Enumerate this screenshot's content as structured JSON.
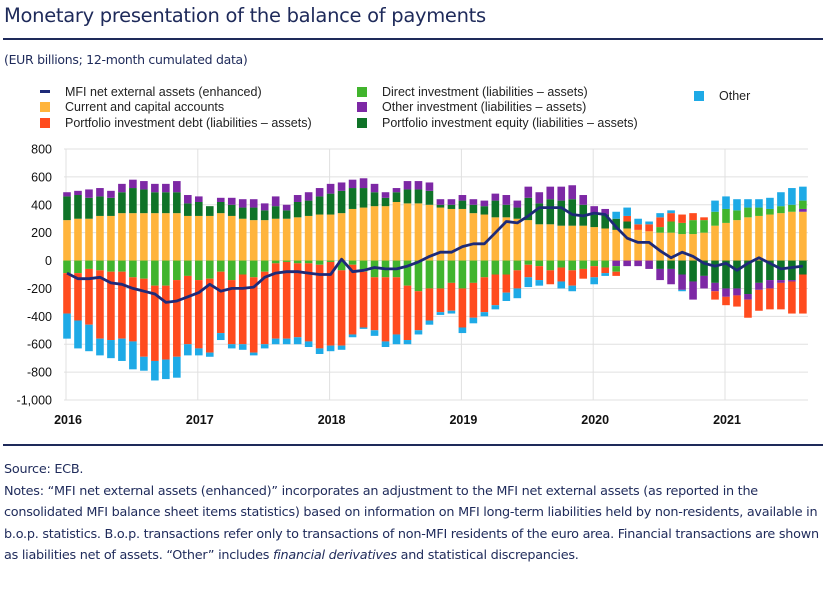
{
  "header": {
    "title": "Monetary presentation of the balance of payments",
    "subtitle": "(EUR billions; 12-month cumulated data)"
  },
  "legend": {
    "col1": [
      {
        "label": "MFI net external assets (enhanced)",
        "key": "mfi"
      },
      {
        "label": "Current and capital accounts",
        "key": "cca"
      },
      {
        "label": "Portfolio investment debt (liabilities – assets)",
        "key": "pid"
      }
    ],
    "col2": [
      {
        "label": "Direct investment (liabilities – assets)",
        "key": "di"
      },
      {
        "label": "Other investment (liabilities – assets)",
        "key": "oi"
      },
      {
        "label": "Portfolio investment equity (liabilities – assets)",
        "key": "pie"
      }
    ],
    "col3": [
      {
        "label": "Other",
        "key": "other"
      }
    ]
  },
  "colors": {
    "mfi": "#1e2a78",
    "cca": "#ffb43c",
    "pid": "#ff4b1e",
    "di": "#41b42d",
    "oi": "#7d28a5",
    "pie": "#0f7328",
    "other": "#1eaae6",
    "title": "#1e2a5a",
    "grid": "#e0e0e0"
  },
  "footer": {
    "source": "Source: ECB.",
    "notes_part1": "Notes: “MFI net external assets (enhanced)” incorporates an adjustment to the MFI net external assets (as reported in the consolidated MFI balance sheet items statistics) based on information on MFI long-term liabilities held by non-residents, available in b.o.p. statistics. B.o.p. transactions refer only to transactions of non-MFI residents of the euro area. Financial transactions are shown as liabilities net of assets. “Other” includes ",
    "notes_italic": "financial derivatives",
    "notes_part2": " and statistical discrepancies."
  },
  "chart_data": {
    "type": "bar",
    "stacked": true,
    "title": "Monetary presentation of the balance of payments",
    "subtitle": "(EUR billions; 12-month cumulated data)",
    "xlabel": "",
    "ylabel": "",
    "ylim": [
      -1000,
      800
    ],
    "yticks": [
      800,
      600,
      400,
      200,
      0,
      -200,
      -400,
      -600,
      -800,
      -1000
    ],
    "ytick_labels": [
      "800",
      "600",
      "400",
      "200",
      "0",
      "-200",
      "-400",
      "-600",
      "-800",
      "-1,000"
    ],
    "xtick_labels": [
      "2016",
      "2017",
      "2018",
      "2019",
      "2020",
      "2021"
    ],
    "x_start": "2016-01",
    "frequency": "monthly",
    "grid": true,
    "legend_position": "top",
    "series": [
      {
        "name": "Current and capital accounts",
        "key": "cca",
        "values": [
          290,
          300,
          300,
          320,
          320,
          340,
          340,
          340,
          340,
          340,
          340,
          320,
          320,
          320,
          340,
          320,
          300,
          290,
          290,
          300,
          300,
          310,
          320,
          330,
          330,
          340,
          370,
          380,
          390,
          390,
          420,
          410,
          410,
          400,
          380,
          370,
          370,
          340,
          330,
          310,
          310,
          300,
          290,
          260,
          260,
          250,
          250,
          250,
          240,
          230,
          220,
          230,
          220,
          210,
          200,
          200,
          190,
          190,
          200,
          250,
          270,
          290,
          310,
          320,
          330,
          340,
          350,
          350
        ]
      },
      {
        "name": "Portfolio investment equity (liabilities – assets)",
        "key": "pie",
        "values": [
          170,
          170,
          150,
          140,
          130,
          150,
          180,
          170,
          150,
          150,
          150,
          90,
          100,
          70,
          80,
          80,
          80,
          90,
          70,
          90,
          60,
          110,
          110,
          130,
          150,
          160,
          150,
          140,
          100,
          60,
          70,
          100,
          100,
          100,
          20,
          30,
          60,
          60,
          60,
          120,
          90,
          80,
          160,
          150,
          180,
          180,
          190,
          150,
          90,
          100,
          80,
          50,
          0,
          0,
          -60,
          -60,
          -100,
          -150,
          -110,
          -160,
          -200,
          -200,
          -240,
          -160,
          -140,
          -140,
          -140,
          -100
        ]
      },
      {
        "name": "Other investment (liabilities – assets)",
        "key": "oi",
        "values": [
          30,
          30,
          60,
          60,
          50,
          60,
          60,
          60,
          60,
          60,
          80,
          60,
          40,
          0,
          30,
          50,
          60,
          60,
          50,
          70,
          40,
          50,
          60,
          60,
          70,
          60,
          60,
          70,
          60,
          40,
          30,
          60,
          60,
          60,
          40,
          40,
          40,
          40,
          40,
          50,
          70,
          50,
          80,
          80,
          90,
          100,
          100,
          70,
          60,
          40,
          -40,
          -40,
          -40,
          -60,
          -80,
          -110,
          -110,
          -130,
          -90,
          -60,
          -60,
          -50,
          -40,
          -50,
          -60,
          -20,
          -10,
          20
        ]
      },
      {
        "name": "Direct investment (liabilities – assets)",
        "key": "di",
        "values": [
          -90,
          -90,
          -60,
          -70,
          -80,
          -80,
          -120,
          -130,
          -180,
          -180,
          -140,
          -110,
          -140,
          -130,
          -80,
          -140,
          -100,
          -120,
          -80,
          -20,
          -10,
          -20,
          -20,
          -30,
          -10,
          -70,
          -30,
          -80,
          -120,
          -120,
          -120,
          -180,
          -220,
          -200,
          -200,
          -160,
          -200,
          -160,
          -120,
          -100,
          -100,
          -70,
          -30,
          -40,
          -70,
          -50,
          -70,
          -60,
          -40,
          -50,
          -40,
          0,
          0,
          0,
          40,
          80,
          80,
          100,
          90,
          100,
          100,
          70,
          70,
          60,
          40,
          50,
          50,
          60
        ]
      },
      {
        "name": "Portfolio investment debt (liabilities – assets)",
        "key": "pid",
        "values": [
          -290,
          -340,
          -400,
          -490,
          -490,
          -480,
          -460,
          -560,
          -540,
          -530,
          -550,
          -490,
          -490,
          -530,
          -440,
          -460,
          -500,
          -540,
          -520,
          -540,
          -550,
          -530,
          -560,
          -600,
          -600,
          -540,
          -500,
          -400,
          -380,
          -460,
          -410,
          -390,
          -280,
          -230,
          -170,
          -200,
          -280,
          -250,
          -250,
          -220,
          -130,
          -130,
          -90,
          -100,
          -100,
          -100,
          -110,
          -70,
          -80,
          -40,
          -30,
          40,
          40,
          50,
          70,
          60,
          60,
          50,
          20,
          -60,
          -60,
          -80,
          -130,
          -150,
          -150,
          -190,
          -230,
          -280
        ]
      },
      {
        "name": "Other",
        "key": "other",
        "values": [
          -180,
          -200,
          -190,
          -120,
          -130,
          -160,
          -200,
          -100,
          -140,
          -140,
          -150,
          -80,
          -50,
          -30,
          -50,
          -30,
          -40,
          -20,
          -30,
          -40,
          -40,
          -50,
          -40,
          -40,
          -40,
          -30,
          -20,
          -10,
          -40,
          -40,
          -70,
          -30,
          -30,
          -30,
          -20,
          -20,
          -40,
          -40,
          -30,
          -30,
          -60,
          -70,
          -70,
          -40,
          0,
          -50,
          -40,
          0,
          -50,
          -20,
          50,
          60,
          40,
          20,
          30,
          20,
          -10,
          0,
          0,
          80,
          90,
          80,
          60,
          60,
          80,
          100,
          120,
          100
        ]
      }
    ],
    "line": {
      "name": "MFI net external assets (enhanced)",
      "key": "mfi",
      "values": [
        -90,
        -130,
        -130,
        -120,
        -160,
        -170,
        -200,
        -220,
        -240,
        -300,
        -290,
        -260,
        -230,
        -170,
        -220,
        -200,
        -200,
        -190,
        -120,
        -90,
        -80,
        -80,
        -90,
        -100,
        -100,
        10,
        -80,
        -70,
        -50,
        -60,
        -60,
        -40,
        -10,
        30,
        60,
        60,
        100,
        120,
        120,
        200,
        280,
        270,
        320,
        380,
        380,
        380,
        330,
        320,
        340,
        330,
        240,
        160,
        130,
        130,
        70,
        20,
        60,
        30,
        -20,
        -40,
        -20,
        -70,
        -20,
        20,
        -20,
        -60,
        -50,
        -40
      ]
    }
  }
}
